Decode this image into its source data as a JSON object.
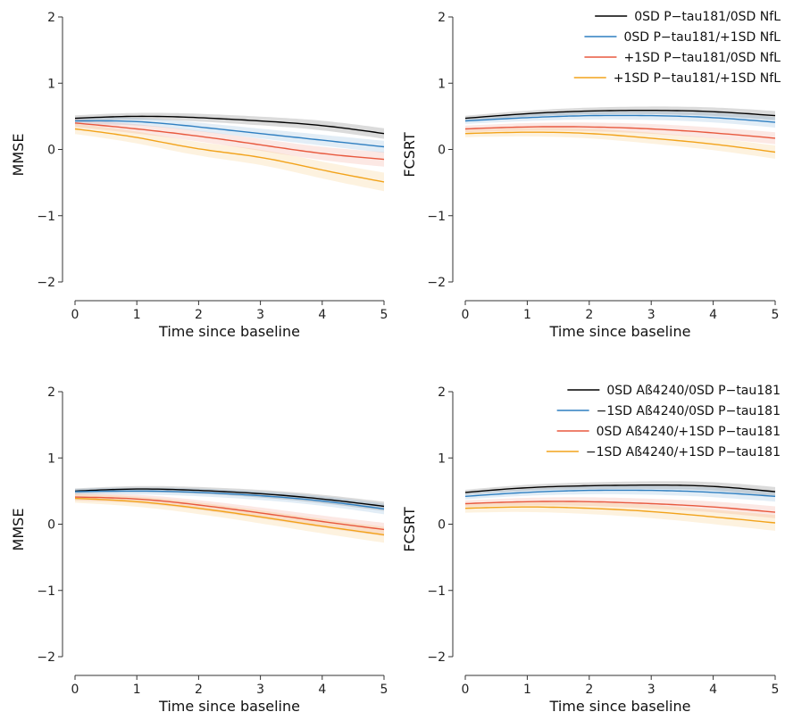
{
  "chart_data": [
    {
      "type": "line",
      "ylabel": "MMSE",
      "xlabel": "Time since baseline",
      "xlim": [
        0,
        5
      ],
      "ylim": [
        -2,
        2
      ],
      "xticks": [
        "0",
        "1",
        "2",
        "3",
        "4",
        "5"
      ],
      "yticks": [
        "−2",
        "−1",
        "0",
        "1",
        "2"
      ],
      "legend": "",
      "series": [
        {
          "color": "#000000",
          "x": [
            0,
            1,
            2,
            3,
            4,
            5
          ],
          "y": [
            0.47,
            0.5,
            0.48,
            0.43,
            0.36,
            0.24
          ],
          "band": 0.08
        },
        {
          "color": "#2f7fc1",
          "x": [
            0,
            1,
            2,
            3,
            4,
            5
          ],
          "y": [
            0.43,
            0.42,
            0.34,
            0.24,
            0.14,
            0.04
          ],
          "band": 0.09
        },
        {
          "color": "#e8593e",
          "x": [
            0,
            1,
            2,
            3,
            4,
            5
          ],
          "y": [
            0.4,
            0.31,
            0.2,
            0.07,
            -0.06,
            -0.15
          ],
          "band": 0.11
        },
        {
          "color": "#f2a31b",
          "x": [
            0,
            1,
            2,
            3,
            4,
            5
          ],
          "y": [
            0.31,
            0.18,
            0.01,
            -0.12,
            -0.31,
            -0.49
          ],
          "band": 0.14
        }
      ]
    },
    {
      "type": "line",
      "ylabel": "FCSRT",
      "xlabel": "Time since baseline",
      "xlim": [
        0,
        5
      ],
      "ylim": [
        -2,
        2
      ],
      "xticks": [
        "0",
        "1",
        "2",
        "3",
        "4",
        "5"
      ],
      "yticks": [
        "−2",
        "−1",
        "0",
        "1",
        "2"
      ],
      "legend": "top-right",
      "series": [
        {
          "name": "0SD P−tau181/0SD NfL",
          "color": "#000000",
          "x": [
            0,
            1,
            2,
            3,
            4,
            5
          ],
          "y": [
            0.47,
            0.54,
            0.58,
            0.59,
            0.57,
            0.51
          ],
          "band": 0.07
        },
        {
          "name": "0SD P−tau181/+1SD NfL",
          "color": "#2f7fc1",
          "x": [
            0,
            1,
            2,
            3,
            4,
            5
          ],
          "y": [
            0.43,
            0.48,
            0.51,
            0.51,
            0.48,
            0.41
          ],
          "band": 0.08
        },
        {
          "name": "+1SD P−tau181/0SD NfL",
          "color": "#e8593e",
          "x": [
            0,
            1,
            2,
            3,
            4,
            5
          ],
          "y": [
            0.31,
            0.34,
            0.34,
            0.31,
            0.25,
            0.17
          ],
          "band": 0.09
        },
        {
          "name": "+1SD P−tau181/+1SD NfL",
          "color": "#f2a31b",
          "x": [
            0,
            1,
            2,
            3,
            4,
            5
          ],
          "y": [
            0.24,
            0.26,
            0.24,
            0.17,
            0.08,
            -0.04
          ],
          "band": 0.1
        }
      ]
    },
    {
      "type": "line",
      "ylabel": "MMSE",
      "xlabel": "Time since baseline",
      "xlim": [
        0,
        5
      ],
      "ylim": [
        -2,
        2
      ],
      "xticks": [
        "0",
        "1",
        "2",
        "3",
        "4",
        "5"
      ],
      "yticks": [
        "−2",
        "−1",
        "0",
        "1",
        "2"
      ],
      "legend": "",
      "series": [
        {
          "color": "#000000",
          "x": [
            0,
            1,
            2,
            3,
            4,
            5
          ],
          "y": [
            0.5,
            0.53,
            0.51,
            0.46,
            0.38,
            0.27
          ],
          "band": 0.07
        },
        {
          "color": "#2f7fc1",
          "x": [
            0,
            1,
            2,
            3,
            4,
            5
          ],
          "y": [
            0.49,
            0.5,
            0.48,
            0.43,
            0.35,
            0.23
          ],
          "band": 0.08
        },
        {
          "color": "#e8593e",
          "x": [
            0,
            1,
            2,
            3,
            4,
            5
          ],
          "y": [
            0.41,
            0.38,
            0.29,
            0.17,
            0.04,
            -0.08
          ],
          "band": 0.1
        },
        {
          "color": "#f2a31b",
          "x": [
            0,
            1,
            2,
            3,
            4,
            5
          ],
          "y": [
            0.39,
            0.34,
            0.24,
            0.11,
            -0.03,
            -0.16
          ],
          "band": 0.12
        }
      ]
    },
    {
      "type": "line",
      "ylabel": "FCSRT",
      "xlabel": "Time since baseline",
      "xlim": [
        0,
        5
      ],
      "ylim": [
        -2,
        2
      ],
      "xticks": [
        "0",
        "1",
        "2",
        "3",
        "4",
        "5"
      ],
      "yticks": [
        "−2",
        "−1",
        "0",
        "1",
        "2"
      ],
      "legend": "top-right",
      "series": [
        {
          "name": "0SD Aß4240/0SD P−tau181",
          "color": "#000000",
          "x": [
            0,
            1,
            2,
            3,
            4,
            5
          ],
          "y": [
            0.48,
            0.55,
            0.58,
            0.59,
            0.57,
            0.49
          ],
          "band": 0.07
        },
        {
          "name": "−1SD Aß4240/0SD P−tau181",
          "color": "#2f7fc1",
          "x": [
            0,
            1,
            2,
            3,
            4,
            5
          ],
          "y": [
            0.42,
            0.48,
            0.51,
            0.51,
            0.48,
            0.42
          ],
          "band": 0.08
        },
        {
          "name": "0SD Aß4240/+1SD P−tau181",
          "color": "#e8593e",
          "x": [
            0,
            1,
            2,
            3,
            4,
            5
          ],
          "y": [
            0.31,
            0.34,
            0.34,
            0.31,
            0.26,
            0.18
          ],
          "band": 0.09
        },
        {
          "name": "−1SD Aß4240/+1SD P−tau181",
          "color": "#f2a31b",
          "x": [
            0,
            1,
            2,
            3,
            4,
            5
          ],
          "y": [
            0.24,
            0.26,
            0.24,
            0.19,
            0.11,
            0.02
          ],
          "band": 0.12
        }
      ]
    }
  ]
}
